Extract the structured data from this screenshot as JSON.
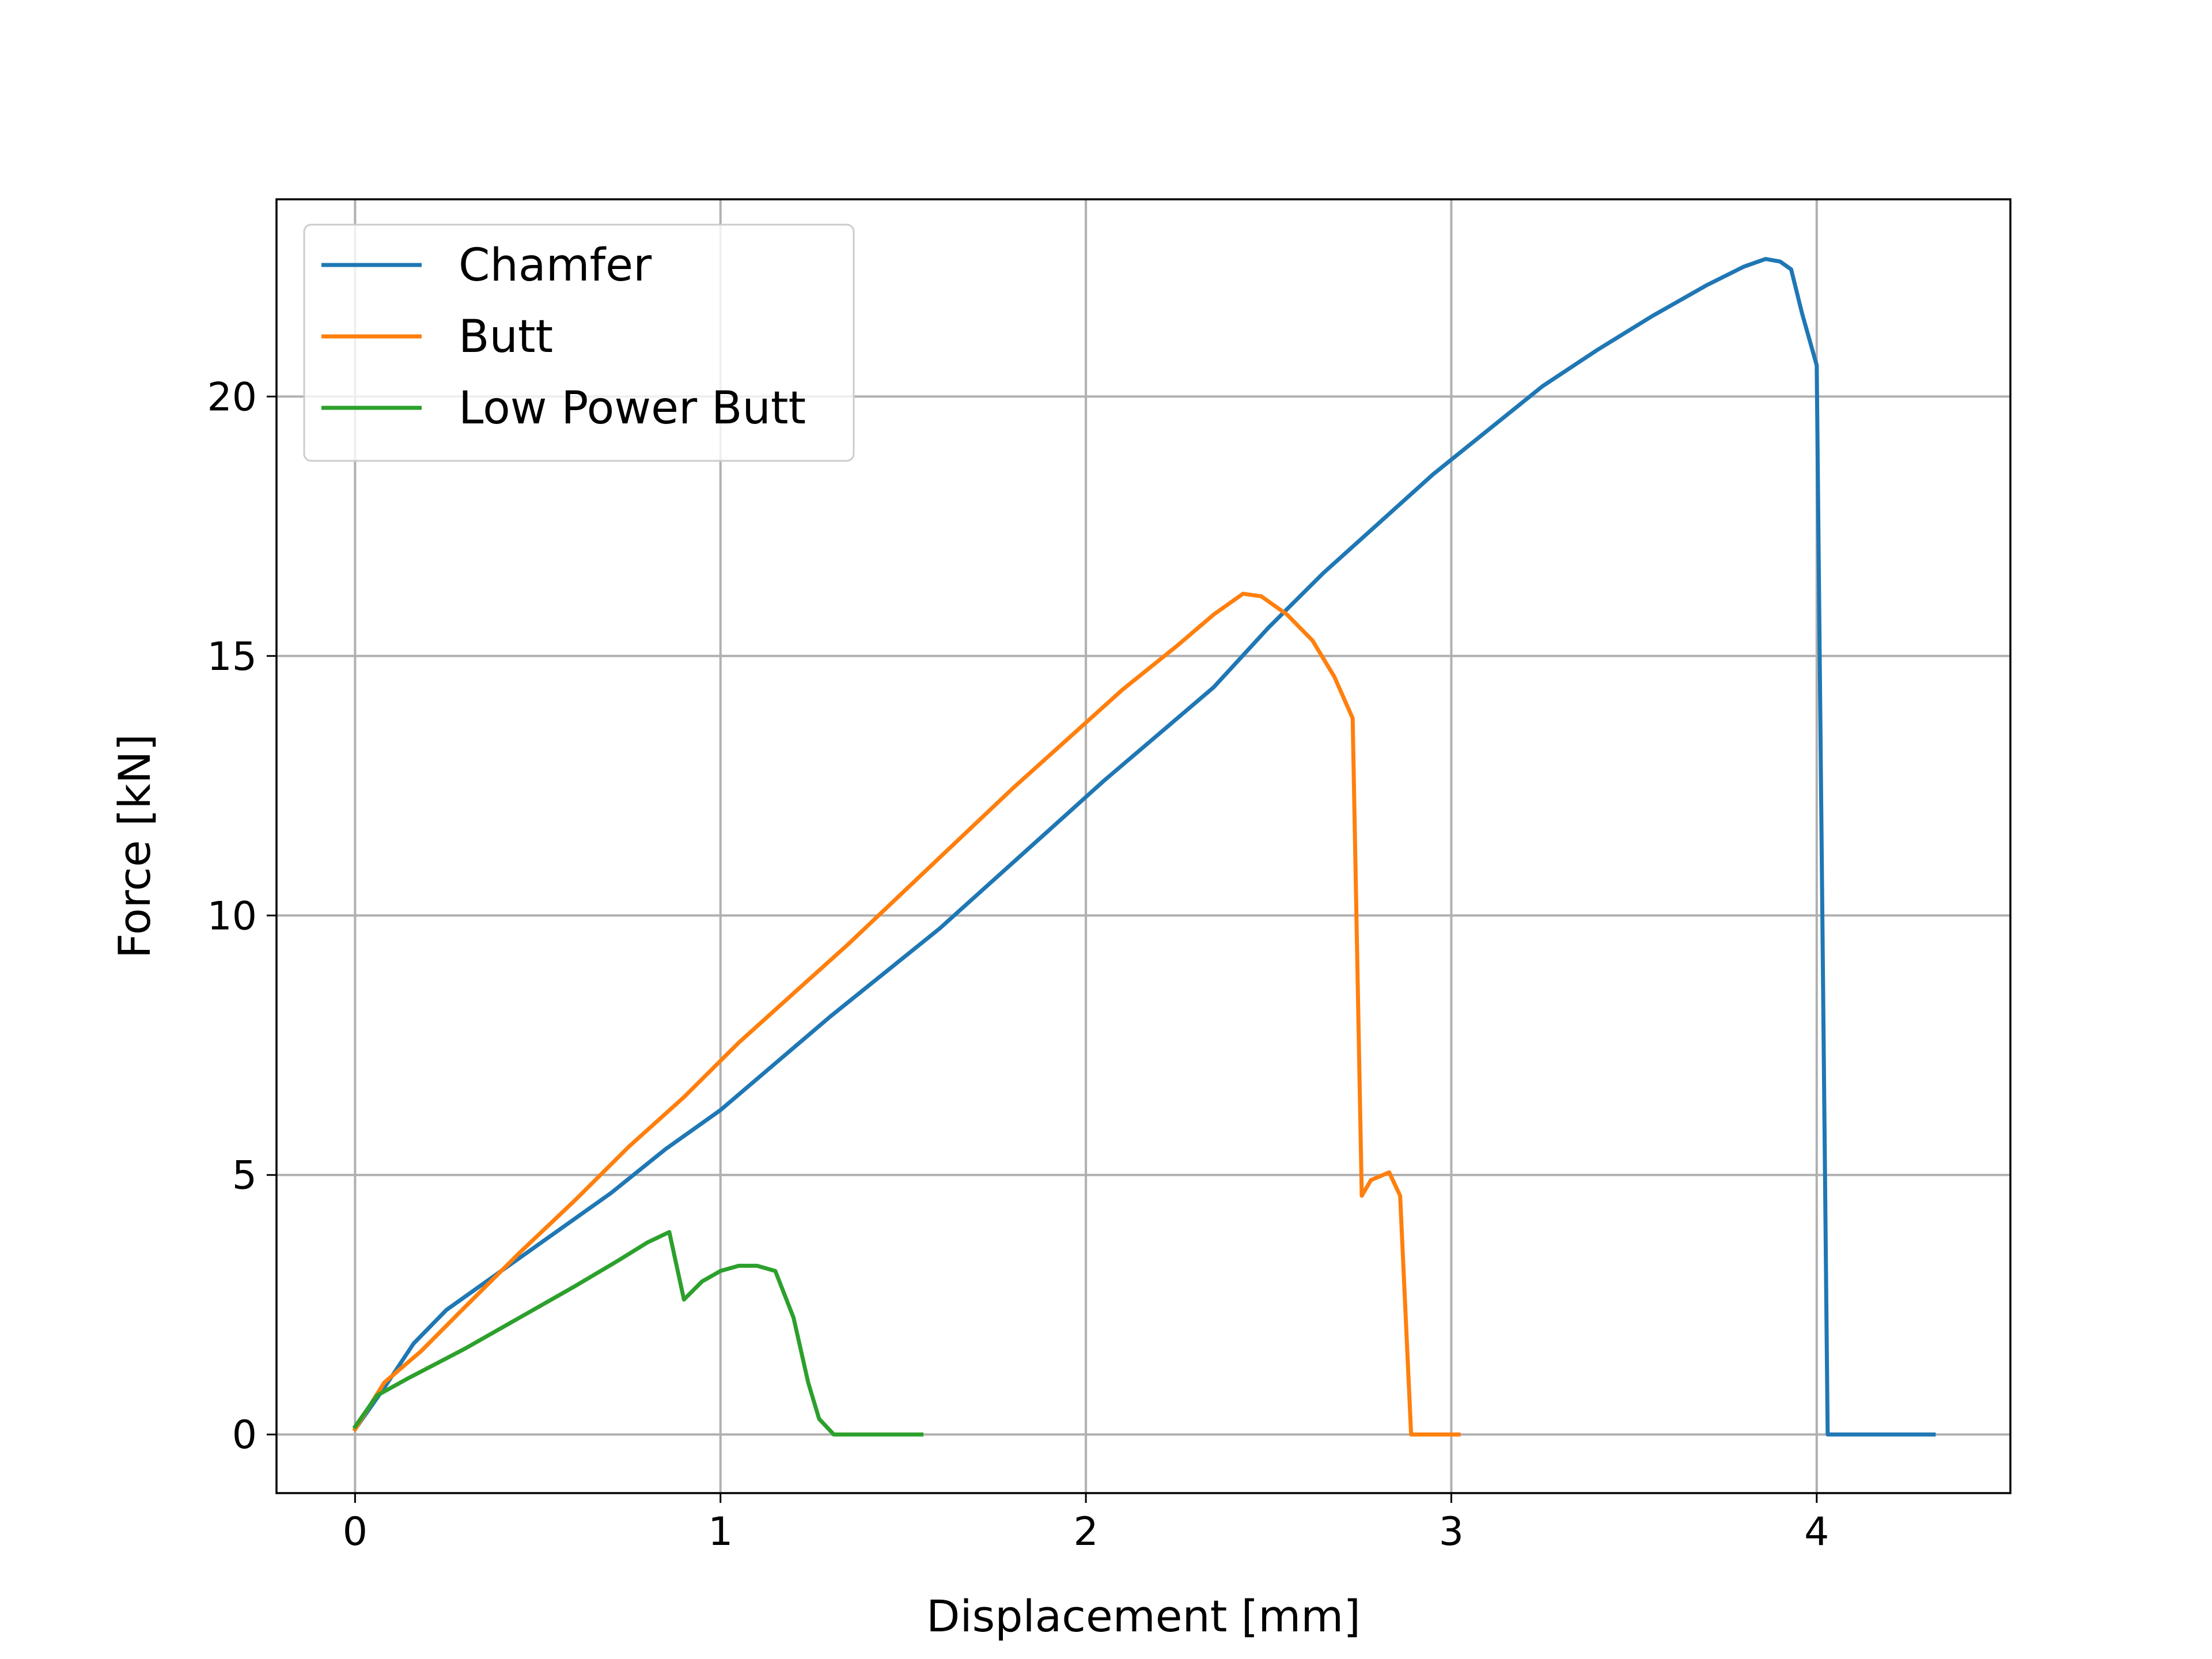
{
  "chart_data": {
    "type": "line",
    "xlabel": "Displacement [mm]",
    "ylabel": "Force [kN]",
    "xlim": [
      -0.215,
      4.53
    ],
    "ylim": [
      -1.13,
      23.8
    ],
    "xticks": [
      0,
      1,
      2,
      3,
      4
    ],
    "yticks": [
      0,
      5,
      10,
      15,
      20
    ],
    "xtick_labels": [
      "0",
      "1",
      "2",
      "3",
      "4"
    ],
    "ytick_labels": [
      "0",
      "5",
      "10",
      "15",
      "20"
    ],
    "grid": true,
    "legend_position": "top-left",
    "series": [
      {
        "name": "Chamfer",
        "color": "#1f77b4",
        "points": [
          [
            0,
            0.1
          ],
          [
            0.08,
            0.9
          ],
          [
            0.16,
            1.75
          ],
          [
            0.25,
            2.4
          ],
          [
            0.4,
            3.15
          ],
          [
            0.55,
            3.9
          ],
          [
            0.7,
            4.65
          ],
          [
            0.85,
            5.5
          ],
          [
            1.0,
            6.25
          ],
          [
            1.15,
            7.15
          ],
          [
            1.3,
            8.05
          ],
          [
            1.45,
            8.9
          ],
          [
            1.6,
            9.75
          ],
          [
            1.75,
            10.7
          ],
          [
            1.9,
            11.65
          ],
          [
            2.05,
            12.6
          ],
          [
            2.2,
            13.5
          ],
          [
            2.35,
            14.4
          ],
          [
            2.5,
            15.55
          ],
          [
            2.65,
            16.6
          ],
          [
            2.8,
            17.55
          ],
          [
            2.95,
            18.5
          ],
          [
            3.1,
            19.35
          ],
          [
            3.25,
            20.2
          ],
          [
            3.4,
            20.9
          ],
          [
            3.55,
            21.55
          ],
          [
            3.7,
            22.15
          ],
          [
            3.8,
            22.5
          ],
          [
            3.86,
            22.65
          ],
          [
            3.9,
            22.6
          ],
          [
            3.93,
            22.45
          ],
          [
            3.96,
            21.6
          ],
          [
            4.0,
            20.6
          ],
          [
            4.03,
            0
          ],
          [
            4.32,
            0
          ]
        ]
      },
      {
        "name": "Butt",
        "color": "#ff7f0e",
        "points": [
          [
            0,
            0.1
          ],
          [
            0.08,
            1.0
          ],
          [
            0.18,
            1.6
          ],
          [
            0.3,
            2.45
          ],
          [
            0.45,
            3.5
          ],
          [
            0.6,
            4.5
          ],
          [
            0.75,
            5.55
          ],
          [
            0.9,
            6.5
          ],
          [
            1.05,
            7.55
          ],
          [
            1.2,
            8.5
          ],
          [
            1.35,
            9.45
          ],
          [
            1.5,
            10.45
          ],
          [
            1.65,
            11.45
          ],
          [
            1.8,
            12.45
          ],
          [
            1.95,
            13.4
          ],
          [
            2.1,
            14.35
          ],
          [
            2.25,
            15.2
          ],
          [
            2.35,
            15.8
          ],
          [
            2.43,
            16.2
          ],
          [
            2.48,
            16.15
          ],
          [
            2.55,
            15.8
          ],
          [
            2.62,
            15.3
          ],
          [
            2.68,
            14.6
          ],
          [
            2.73,
            13.8
          ],
          [
            2.755,
            4.6
          ],
          [
            2.78,
            4.9
          ],
          [
            2.83,
            5.05
          ],
          [
            2.86,
            4.6
          ],
          [
            2.89,
            0
          ],
          [
            3.02,
            0
          ]
        ]
      },
      {
        "name": "Low Power Butt",
        "color": "#2ca02c",
        "points": [
          [
            0,
            0.15
          ],
          [
            0.06,
            0.75
          ],
          [
            0.15,
            1.1
          ],
          [
            0.3,
            1.65
          ],
          [
            0.45,
            2.25
          ],
          [
            0.6,
            2.85
          ],
          [
            0.72,
            3.35
          ],
          [
            0.8,
            3.7
          ],
          [
            0.86,
            3.9
          ],
          [
            0.9,
            2.6
          ],
          [
            0.95,
            2.95
          ],
          [
            1.0,
            3.15
          ],
          [
            1.05,
            3.25
          ],
          [
            1.1,
            3.25
          ],
          [
            1.15,
            3.15
          ],
          [
            1.2,
            2.25
          ],
          [
            1.24,
            1.0
          ],
          [
            1.27,
            0.3
          ],
          [
            1.31,
            0
          ],
          [
            1.55,
            0
          ]
        ]
      }
    ]
  }
}
